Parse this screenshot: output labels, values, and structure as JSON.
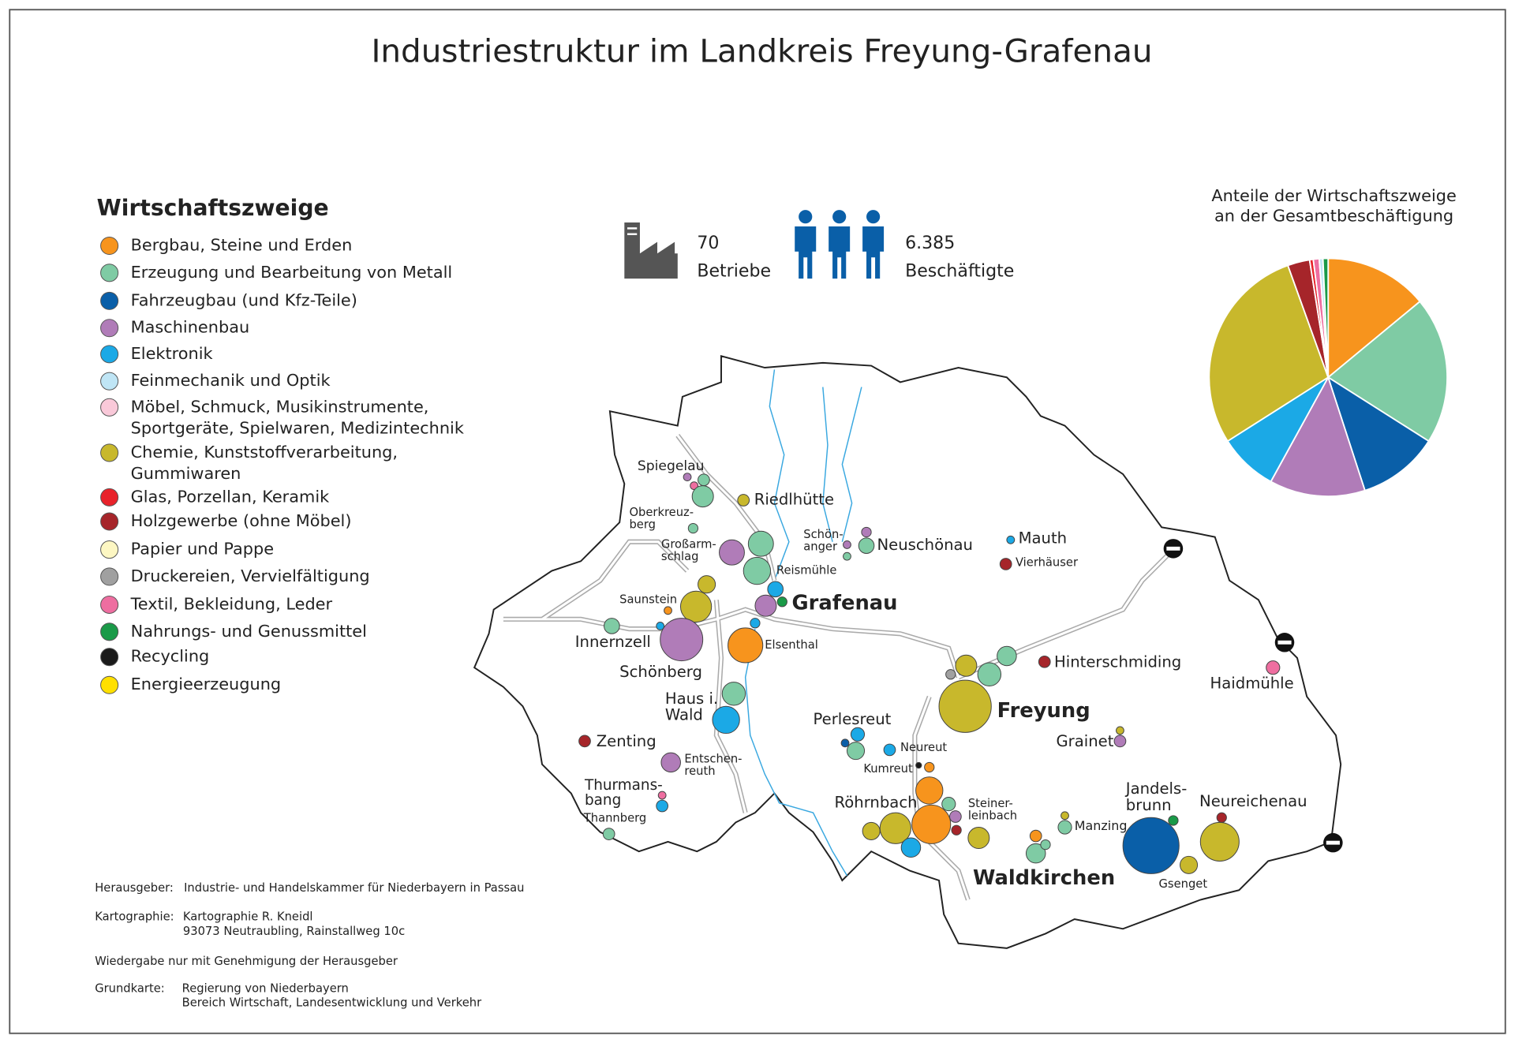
{
  "title": "Industriestruktur im Landkreis Freyung-Grafenau",
  "legend": {
    "title": "Wirtschaftszweige",
    "items": [
      {
        "lines": [
          "Bergbau, Steine und Erden"
        ],
        "color": "#f7941d"
      },
      {
        "lines": [
          "Erzeugung und Bearbeitung von Metall"
        ],
        "color": "#7fcba4"
      },
      {
        "lines": [
          "Fahrzeugbau (und Kfz-Teile)"
        ],
        "color": "#0a5fa8"
      },
      {
        "lines": [
          "Maschinenbau"
        ],
        "color": "#b07cb8"
      },
      {
        "lines": [
          "Elektronik"
        ],
        "color": "#1ba9e6"
      },
      {
        "lines": [
          "Feinmechanik und Optik"
        ],
        "color": "#bfe5f5"
      },
      {
        "lines": [
          "Möbel, Schmuck, Musikinstrumente,",
          "Sportgeräte, Spielwaren, Medizintechnik"
        ],
        "color": "#f9c9d9"
      },
      {
        "lines": [
          "Chemie, Kunststoffverarbeitung,",
          "Gummiwaren"
        ],
        "color": "#c8b82c"
      },
      {
        "lines": [
          "Glas, Porzellan, Keramik"
        ],
        "color": "#e8222a"
      },
      {
        "lines": [
          "Holzgewerbe (ohne Möbel)"
        ],
        "color": "#a6252a"
      },
      {
        "lines": [
          "Papier und Pappe"
        ],
        "color": "#fdf7c3"
      },
      {
        "lines": [
          "Druckereien, Vervielfältigung"
        ],
        "color": "#a0a0a0"
      },
      {
        "lines": [
          "Textil, Bekleidung, Leder"
        ],
        "color": "#ee6ea0"
      },
      {
        "lines": [
          "Nahrungs- und Genussmittel"
        ],
        "color": "#1a9a48"
      },
      {
        "lines": [
          "Recycling"
        ],
        "color": "#1a1a1a"
      },
      {
        "lines": [
          "Energieerzeugung"
        ],
        "color": "#ffe000"
      }
    ]
  },
  "stats": {
    "betriebe": {
      "value": "70",
      "label": "Betriebe"
    },
    "beschaeftigte": {
      "value": "6.385",
      "label": "Beschäftigte"
    }
  },
  "pie": {
    "type": "pie",
    "title": [
      "Anteile der Wirtschaftszweige",
      "an der Gesamtbeschäftigung"
    ],
    "slices": [
      {
        "sector": 0,
        "value": 14
      },
      {
        "sector": 1,
        "value": 20
      },
      {
        "sector": 2,
        "value": 11
      },
      {
        "sector": 3,
        "value": 13
      },
      {
        "sector": 4,
        "value": 8
      },
      {
        "sector": 7,
        "value": 28.5
      },
      {
        "sector": 9,
        "value": 3
      },
      {
        "sector": 8,
        "value": 0.5
      },
      {
        "sector": 12,
        "value": 0.8
      },
      {
        "sector": 5,
        "value": 0.5
      },
      {
        "sector": 13,
        "value": 0.7
      }
    ]
  },
  "places": [
    [
      "Spiegelau"
    ],
    [
      "Riedlhütte"
    ],
    [
      "Oberkreuz-",
      "berg"
    ],
    [
      "Großarm-",
      "schlag"
    ],
    [
      "Schön-",
      "anger"
    ],
    [
      "Neuschönau"
    ],
    [
      "Mauth"
    ],
    [
      "Vierhäuser"
    ],
    [
      "Reismühle"
    ],
    [
      "Grafenau"
    ],
    [
      "Saunstein"
    ],
    [
      "Innernzell"
    ],
    [
      "Elsenthal"
    ],
    [
      "Schönberg"
    ],
    [
      "Hinterschmiding"
    ],
    [
      "Haidmühle"
    ],
    [
      "Haus i.",
      "Wald"
    ],
    [
      "Freyung"
    ],
    [
      "Perlesreut"
    ],
    [
      "Neureut"
    ],
    [
      "Grainet"
    ],
    [
      "Zenting"
    ],
    [
      "Entschen-",
      "reuth"
    ],
    [
      "Kumreut"
    ],
    [
      "Thurmans-",
      "bang"
    ],
    [
      "Röhrnbach"
    ],
    [
      "Steiner-",
      "leinbach"
    ],
    [
      "Jandels-",
      "brunn"
    ],
    [
      "Neureichenau"
    ],
    [
      "Manzing"
    ],
    [
      "Thannberg"
    ],
    [
      "Waldkirchen"
    ],
    [
      "Gsenget"
    ]
  ],
  "credits": [
    {
      "label": "Herausgeber:",
      "lines": [
        "Industrie- und Handelskammer für Niederbayern in Passau"
      ]
    },
    {
      "label": "Kartographie:",
      "lines": [
        "Kartographie R. Kneidl",
        "93073 Neutraubling, Rainstallweg 10c"
      ]
    },
    {
      "label": "Wiedergabe nur mit Genehmigung der Herausgeber",
      "lines": []
    },
    {
      "label": "Grundkarte:",
      "lines": [
        "Regierung von Niederbayern",
        "Bereich Wirtschaft, Landesentwicklung und Verkehr"
      ]
    }
  ]
}
